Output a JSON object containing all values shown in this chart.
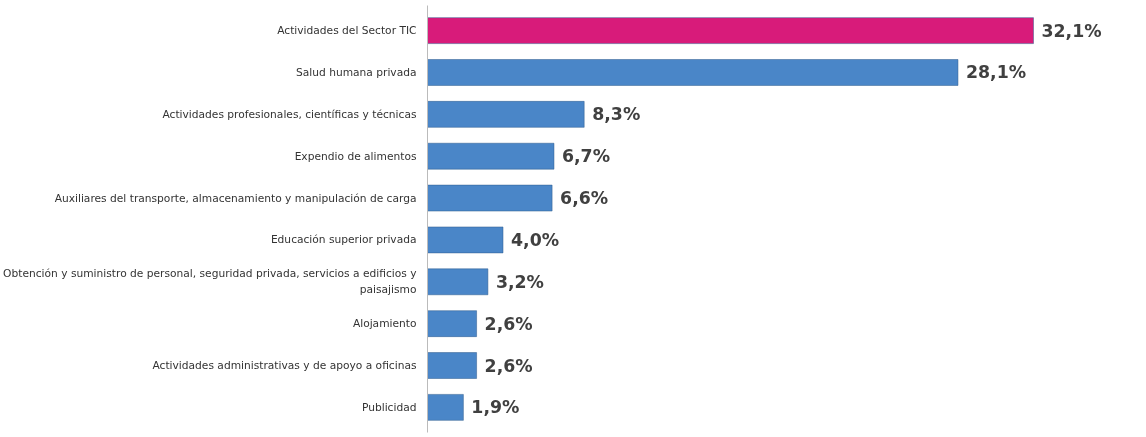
{
  "chart_data": {
    "type": "bar",
    "orientation": "horizontal",
    "categories": [
      "Actividades del Sector TIC",
      "Salud humana privada",
      "Actividades profesionales, científicas y técnicas",
      "Expendio de alimentos",
      "Auxiliares del transporte, almacenamiento y manipulación de carga",
      "Educación superior privada",
      "Obtención y suministro de personal, seguridad privada, servicios a edificios y paisajismo",
      "Alojamiento",
      "Actividades administrativas y de apoyo a oficinas",
      "Publicidad"
    ],
    "values": [
      32.1,
      28.1,
      8.3,
      6.7,
      6.6,
      4.0,
      3.2,
      2.6,
      2.6,
      1.9
    ],
    "colors": [
      "#d81b7a",
      "#4a86c8",
      "#4a86c8",
      "#4a86c8",
      "#4a86c8",
      "#4a86c8",
      "#4a86c8",
      "#4a86c8",
      "#4a86c8",
      "#4a86c8"
    ],
    "value_labels": [
      "32,1%",
      "28,1%",
      "8,3%",
      "6,7%",
      "6,6%",
      "4,0%",
      "3,2%",
      "2,6%",
      "2,6%",
      "1,9%"
    ],
    "tick_labels": "y",
    "grid": false
  }
}
